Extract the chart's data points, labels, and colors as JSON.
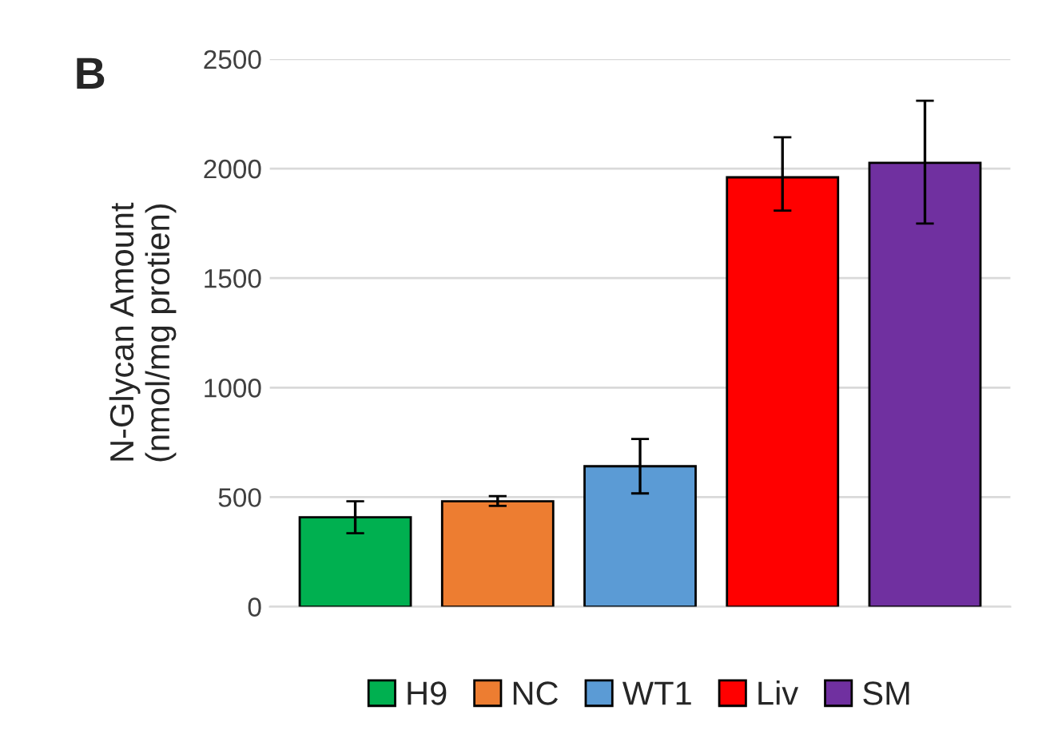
{
  "chart_data": {
    "type": "bar",
    "ylabel": "N-Glycan Amount\n(nmol/mg protien)",
    "categories": [
      null,
      null,
      null,
      null,
      null
    ],
    "series": [
      {
        "name": "H9",
        "color": "#00b050",
        "values": [
          408,
          null,
          null,
          null,
          null
        ],
        "errors": [
          [
            335,
            481
          ],
          null,
          null,
          null,
          null
        ]
      },
      {
        "name": "NC",
        "color": "#ed7d31",
        "values": [
          null,
          481,
          null,
          null,
          null
        ],
        "errors": [
          null,
          [
            460,
            505
          ],
          null,
          null,
          null
        ]
      },
      {
        "name": "WT1",
        "color": "#5b9bd5",
        "values": [
          null,
          null,
          641,
          null,
          null
        ],
        "errors": [
          null,
          null,
          [
            517,
            765
          ],
          null,
          null
        ]
      },
      {
        "name": "Liv",
        "color": "#ff0000",
        "values": [
          null,
          null,
          null,
          1960,
          null
        ],
        "errors": [
          null,
          null,
          null,
          [
            1808,
            2143
          ],
          null
        ]
      },
      {
        "name": "SM",
        "color": "#7030a0",
        "values": [
          null,
          null,
          null,
          null,
          2026
        ],
        "errors": [
          null,
          null,
          null,
          null,
          [
            1749,
            2310
          ]
        ]
      }
    ],
    "ylim": [
      0,
      2500
    ],
    "yticks": [
      0,
      500,
      1000,
      1500,
      2000,
      2500
    ],
    "grid": "y",
    "legend": "bottom",
    "tick_labels": "y",
    "annotations": [
      "B"
    ]
  }
}
